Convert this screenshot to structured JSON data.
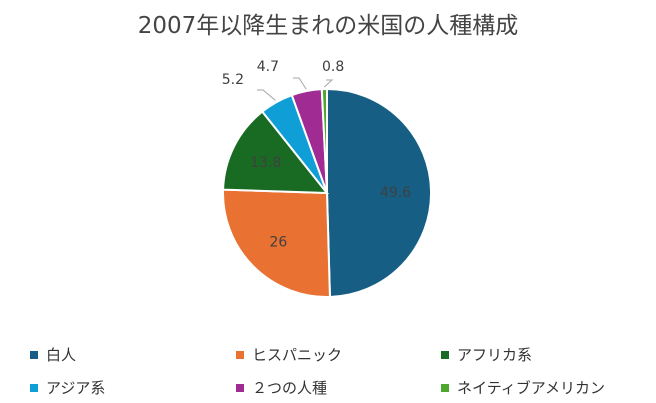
{
  "chart_data": {
    "type": "pie",
    "title": "2007年以降生まれの米国の人種構成",
    "categories": [
      "白人",
      "ヒスパニック",
      "アフリカ系",
      "アジア系",
      "２つの人種",
      "ネイティブアメリカン"
    ],
    "values": [
      49.6,
      26,
      13.8,
      5.2,
      4.7,
      0.8
    ],
    "value_labels": [
      "49.6",
      "26",
      "13.8",
      "5.2",
      "4.7",
      "0.8"
    ],
    "colors": [
      "#165E83",
      "#E97132",
      "#196B24",
      "#0F9ED5",
      "#A02B93",
      "#4EA72E"
    ],
    "legend_position": "bottom"
  }
}
